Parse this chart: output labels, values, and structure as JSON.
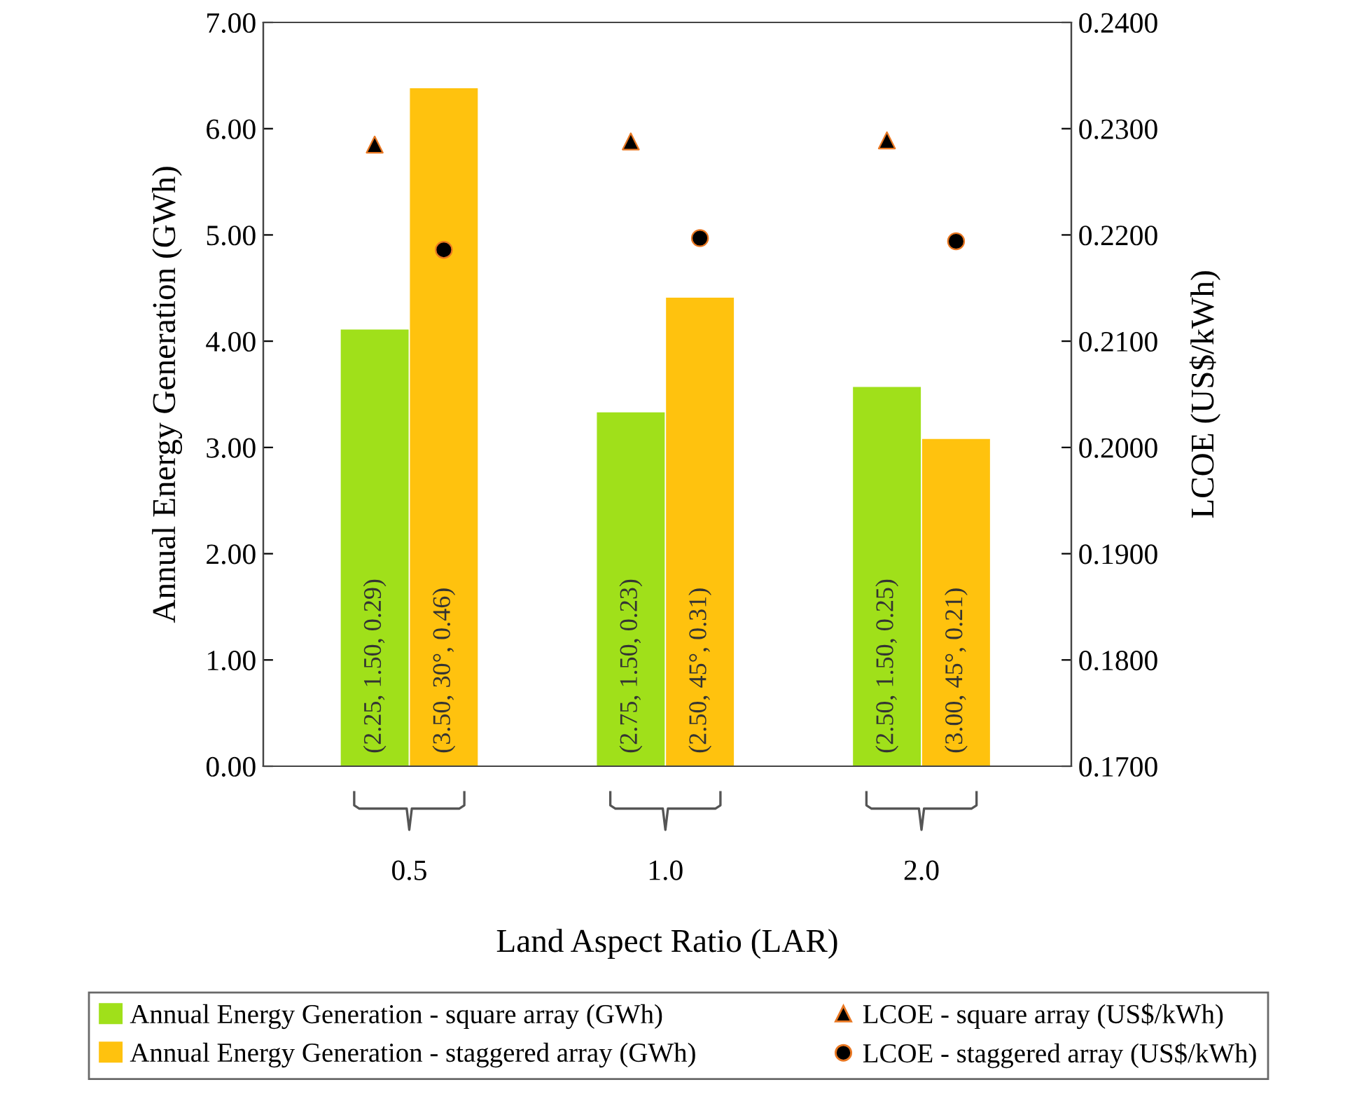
{
  "chart_data": {
    "type": "bar",
    "xlabel": "Land Aspect Ratio (LAR)",
    "ylabel": "Annual Energy Generation (GWh)",
    "y2label": "LCOE (US$/kWh)",
    "categories": [
      "0.5",
      "1.0",
      "2.0"
    ],
    "series": [
      {
        "name": "Annual Energy Generation - square array (GWh)",
        "color": "#a0e01a",
        "values": [
          4.11,
          3.33,
          3.57
        ],
        "value_labels": [
          "(2.25, 1.50, 0.29)",
          "(2.75, 1.50, 0.23)",
          "(2.50, 1.50, 0.25)"
        ]
      },
      {
        "name": "Annual Energy Generation - staggered array (GWh)",
        "color": "#ffc20e",
        "values": [
          6.38,
          4.41,
          3.08
        ],
        "value_labels": [
          "(3.50, 30°, 0.46)",
          "(2.50, 45°, 0.31)",
          "(3.00, 45°, 0.21)"
        ]
      },
      {
        "name": "LCOE - square array (US$/kWh)",
        "type": "scatter",
        "axis": "y2",
        "marker": "triangle",
        "color": "#000000",
        "values": [
          0.2285,
          0.2288,
          0.2289
        ]
      },
      {
        "name": "LCOE - staggered array (US$/kWh)",
        "type": "scatter",
        "axis": "y2",
        "marker": "circle",
        "color": "#000000",
        "values": [
          0.2186,
          0.2197,
          0.2194
        ]
      }
    ],
    "ylim": [
      0,
      7
    ],
    "yticks": [
      {
        "value": 0,
        "label": "0.00"
      },
      {
        "value": 1,
        "label": "1.00"
      },
      {
        "value": 2,
        "label": "2.00"
      },
      {
        "value": 3,
        "label": "3.00"
      },
      {
        "value": 4,
        "label": "4.00"
      },
      {
        "value": 5,
        "label": "5.00"
      },
      {
        "value": 6,
        "label": "6.00"
      },
      {
        "value": 7,
        "label": "7.00"
      }
    ],
    "y2lim": [
      0.17,
      0.24
    ],
    "y2ticks": [
      {
        "value": 0.17,
        "label": "0.1700"
      },
      {
        "value": 0.18,
        "label": "0.1800"
      },
      {
        "value": 0.19,
        "label": "0.1900"
      },
      {
        "value": 0.2,
        "label": "0.2000"
      },
      {
        "value": 0.21,
        "label": "0.2100"
      },
      {
        "value": 0.22,
        "label": "0.2200"
      },
      {
        "value": 0.23,
        "label": "0.2300"
      },
      {
        "value": 0.24,
        "label": "0.2400"
      }
    ],
    "grid": false,
    "legend": "bottom"
  }
}
